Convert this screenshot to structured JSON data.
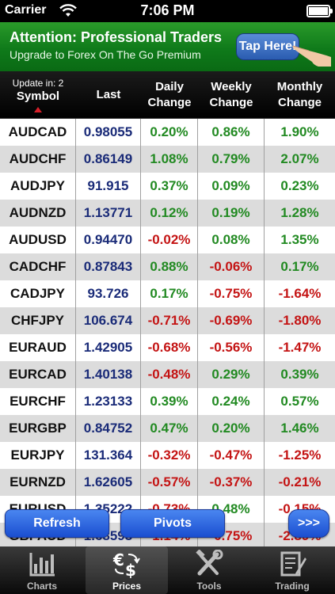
{
  "status_bar": {
    "carrier": "Carrier",
    "time": "7:06 PM"
  },
  "banner": {
    "title": "Attention: Professional Traders",
    "subtitle": "Upgrade to Forex On The Go Premium",
    "button_label": "Tap Here!"
  },
  "table": {
    "update_label": "Update in: 2",
    "headers": {
      "symbol": "Symbol",
      "last": "Last",
      "daily_1": "Daily",
      "daily_2": "Change",
      "weekly_1": "Weekly",
      "weekly_2": "Change",
      "monthly_1": "Monthly",
      "monthly_2": "Change"
    },
    "rows": [
      {
        "symbol": "AUDCAD",
        "last": "0.98055",
        "daily": "0.20%",
        "weekly": "0.86%",
        "monthly": "1.90%"
      },
      {
        "symbol": "AUDCHF",
        "last": "0.86149",
        "daily": "1.08%",
        "weekly": "0.79%",
        "monthly": "2.07%"
      },
      {
        "symbol": "AUDJPY",
        "last": "91.915",
        "daily": "0.37%",
        "weekly": "0.09%",
        "monthly": "0.23%"
      },
      {
        "symbol": "AUDNZD",
        "last": "1.13771",
        "daily": "0.12%",
        "weekly": "0.19%",
        "monthly": "1.28%"
      },
      {
        "symbol": "AUDUSD",
        "last": "0.94470",
        "daily": "-0.02%",
        "weekly": "0.08%",
        "monthly": "1.35%"
      },
      {
        "symbol": "CADCHF",
        "last": "0.87843",
        "daily": "0.88%",
        "weekly": "-0.06%",
        "monthly": "0.17%"
      },
      {
        "symbol": "CADJPY",
        "last": "93.726",
        "daily": "0.17%",
        "weekly": "-0.75%",
        "monthly": "-1.64%"
      },
      {
        "symbol": "CHFJPY",
        "last": "106.674",
        "daily": "-0.71%",
        "weekly": "-0.69%",
        "monthly": "-1.80%"
      },
      {
        "symbol": "EURAUD",
        "last": "1.42905",
        "daily": "-0.68%",
        "weekly": "-0.56%",
        "monthly": "-1.47%"
      },
      {
        "symbol": "EURCAD",
        "last": "1.40138",
        "daily": "-0.48%",
        "weekly": "0.29%",
        "monthly": "0.39%"
      },
      {
        "symbol": "EURCHF",
        "last": "1.23133",
        "daily": "0.39%",
        "weekly": "0.24%",
        "monthly": "0.57%"
      },
      {
        "symbol": "EURGBP",
        "last": "0.84752",
        "daily": "0.47%",
        "weekly": "0.20%",
        "monthly": "1.46%"
      },
      {
        "symbol": "EURJPY",
        "last": "131.364",
        "daily": "-0.32%",
        "weekly": "-0.47%",
        "monthly": "-1.25%"
      },
      {
        "symbol": "EURNZD",
        "last": "1.62605",
        "daily": "-0.57%",
        "weekly": "-0.37%",
        "monthly": "-0.21%"
      },
      {
        "symbol": "EURUSD",
        "last": "1.35222",
        "daily": "-0.73%",
        "weekly": "0.48%",
        "monthly": "-0.15%"
      },
      {
        "symbol": "GBPAUD",
        "last": "1.68593",
        "daily": "-1.14%",
        "weekly": "-0.75%",
        "monthly": "-2.89%"
      }
    ]
  },
  "actions": {
    "refresh": "Refresh",
    "pivots": "Pivots",
    "more": ">>>"
  },
  "tabs": [
    {
      "label": "Charts",
      "icon": "chart-icon",
      "active": false
    },
    {
      "label": "Prices",
      "icon": "currency-icon",
      "active": true
    },
    {
      "label": "Tools",
      "icon": "tools-icon",
      "active": false
    },
    {
      "label": "Trading",
      "icon": "trading-icon",
      "active": false
    }
  ],
  "colors": {
    "positive": "#228a22",
    "negative": "#c41414",
    "last_price": "#1a2b78",
    "banner": "#1a8a24",
    "button": "#2a5ee0"
  }
}
